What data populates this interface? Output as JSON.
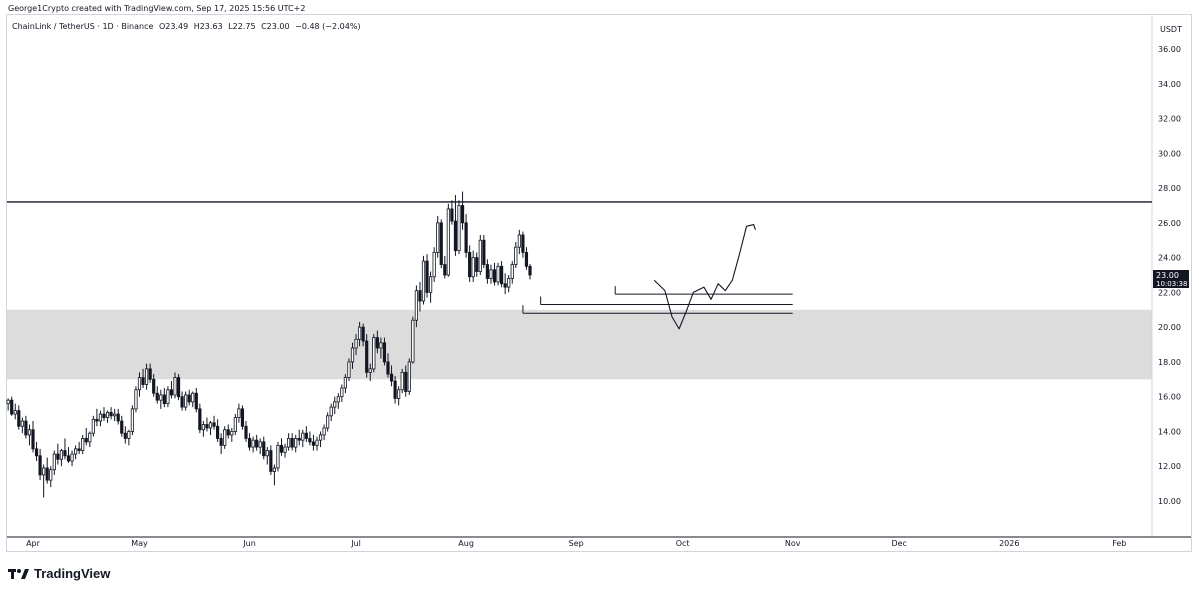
{
  "header": {
    "credit": "George1Crypto created with TradingView.com, Sep 17, 2025 15:56 UTC+2"
  },
  "symbol": {
    "name": "ChainLink / TetherUS · 1D · Binance",
    "open": "O23.49",
    "high": "H23.63",
    "low": "L22.75",
    "close": "C23.00",
    "change": "−0.48 (−2.04%)",
    "change_color": "#f23645"
  },
  "footer": {
    "brand": "TradingView"
  },
  "colors": {
    "up": "#131722",
    "down": "#131722",
    "grid": "#f0f3fa",
    "zone": "#dcdcdc",
    "line": "#131722"
  },
  "chart_data": {
    "type": "candlestick",
    "currency_label": "USDT",
    "y_ticks": [
      "36.00",
      "34.00",
      "32.00",
      "30.00",
      "28.00",
      "26.00",
      "24.00",
      "22.00",
      "20.00",
      "18.00",
      "16.00",
      "14.00",
      "12.00",
      "10.00"
    ],
    "ylim": [
      8.0,
      38.0
    ],
    "x_ticks": [
      {
        "label": "Apr",
        "day": 0
      },
      {
        "label": "May",
        "day": 30
      },
      {
        "label": "Jun",
        "day": 61
      },
      {
        "label": "Jul",
        "day": 91
      },
      {
        "label": "Aug",
        "day": 122
      },
      {
        "label": "Sep",
        "day": 153
      },
      {
        "label": "Oct",
        "day": 183
      },
      {
        "label": "Nov",
        "day": 214
      },
      {
        "label": "Dec",
        "day": 244
      },
      {
        "label": "2026",
        "day": 275
      },
      {
        "label": "Feb",
        "day": 306
      }
    ],
    "last_price": {
      "value": 23.0,
      "label": "23.00",
      "countdown": "10:03:38"
    },
    "resistance_level": 27.2,
    "demand_zone": [
      17.0,
      21.0
    ],
    "support_lines": [
      {
        "price": 21.9,
        "from_day": 164,
        "to_day": 214
      },
      {
        "price": 21.3,
        "from_day": 143,
        "to_day": 214
      },
      {
        "price": 20.8,
        "from_day": 138,
        "to_day": 214
      }
    ],
    "projection": [
      [
        175,
        22.7
      ],
      [
        178,
        22.1
      ],
      [
        180,
        20.6
      ],
      [
        182,
        19.9
      ],
      [
        184,
        20.9
      ],
      [
        186,
        22.0
      ],
      [
        189,
        22.3
      ],
      [
        191,
        21.6
      ],
      [
        193,
        22.5
      ],
      [
        195,
        22.1
      ],
      [
        197,
        22.7
      ],
      [
        199,
        24.2
      ],
      [
        201,
        25.8
      ],
      [
        203,
        25.9
      ],
      [
        203.5,
        25.6
      ]
    ],
    "candles": [
      [
        15.6,
        15.9,
        15.2,
        15.8
      ],
      [
        15.8,
        16.0,
        14.9,
        15.0
      ],
      [
        15.0,
        15.6,
        14.7,
        15.2
      ],
      [
        15.2,
        15.5,
        14.1,
        14.3
      ],
      [
        14.3,
        14.8,
        13.9,
        14.6
      ],
      [
        14.6,
        14.9,
        13.6,
        13.8
      ],
      [
        13.8,
        14.4,
        13.2,
        14.1
      ],
      [
        14.1,
        14.6,
        12.8,
        13.0
      ],
      [
        13.0,
        13.4,
        12.3,
        12.6
      ],
      [
        12.6,
        13.0,
        11.2,
        11.5
      ],
      [
        11.5,
        12.1,
        10.2,
        11.9
      ],
      [
        11.9,
        12.5,
        11.0,
        11.2
      ],
      [
        11.2,
        12.0,
        10.8,
        11.8
      ],
      [
        11.8,
        12.9,
        11.5,
        12.7
      ],
      [
        12.7,
        13.3,
        12.1,
        12.4
      ],
      [
        12.4,
        13.0,
        12.0,
        12.9
      ],
      [
        12.9,
        13.6,
        12.4,
        12.6
      ],
      [
        12.6,
        13.1,
        12.2,
        12.3
      ],
      [
        12.3,
        12.9,
        12.0,
        12.7
      ],
      [
        12.7,
        13.2,
        12.4,
        13.0
      ],
      [
        13.0,
        13.4,
        12.7,
        12.9
      ],
      [
        12.9,
        13.8,
        12.7,
        13.6
      ],
      [
        13.6,
        14.2,
        13.2,
        13.4
      ],
      [
        13.4,
        14.0,
        13.1,
        13.9
      ],
      [
        13.9,
        14.9,
        13.7,
        14.7
      ],
      [
        14.7,
        15.3,
        14.3,
        14.6
      ],
      [
        14.6,
        15.2,
        14.3,
        15.0
      ],
      [
        15.0,
        15.4,
        14.6,
        14.8
      ],
      [
        14.8,
        15.2,
        14.5,
        15.1
      ],
      [
        15.1,
        15.4,
        14.7,
        14.9
      ],
      [
        14.9,
        15.3,
        14.6,
        15.0
      ],
      [
        15.0,
        15.3,
        14.4,
        14.6
      ],
      [
        14.6,
        14.9,
        13.7,
        13.9
      ],
      [
        13.9,
        14.3,
        13.3,
        13.6
      ],
      [
        13.6,
        14.1,
        13.2,
        14.0
      ],
      [
        14.0,
        15.5,
        13.8,
        15.3
      ],
      [
        15.3,
        16.6,
        15.1,
        16.4
      ],
      [
        16.4,
        17.4,
        16.0,
        17.1
      ],
      [
        17.1,
        17.6,
        16.5,
        16.7
      ],
      [
        16.7,
        17.9,
        16.4,
        17.6
      ],
      [
        17.6,
        17.9,
        16.8,
        17.0
      ],
      [
        17.0,
        17.3,
        16.0,
        16.2
      ],
      [
        16.2,
        16.6,
        15.6,
        15.8
      ],
      [
        15.8,
        16.4,
        15.3,
        16.1
      ],
      [
        16.1,
        16.5,
        15.4,
        15.6
      ],
      [
        15.6,
        16.6,
        15.4,
        16.4
      ],
      [
        16.4,
        16.9,
        15.9,
        16.1
      ],
      [
        16.1,
        17.4,
        15.9,
        17.1
      ],
      [
        17.1,
        17.3,
        15.8,
        16.0
      ],
      [
        16.0,
        16.3,
        15.2,
        15.4
      ],
      [
        15.4,
        16.3,
        15.2,
        16.1
      ],
      [
        16.1,
        16.4,
        15.5,
        15.7
      ],
      [
        15.7,
        16.3,
        15.4,
        16.2
      ],
      [
        16.2,
        16.5,
        15.1,
        15.3
      ],
      [
        15.3,
        15.6,
        13.9,
        14.1
      ],
      [
        14.1,
        14.6,
        13.7,
        14.4
      ],
      [
        14.4,
        14.8,
        14.0,
        14.2
      ],
      [
        14.2,
        14.6,
        13.8,
        14.5
      ],
      [
        14.5,
        14.9,
        14.1,
        14.3
      ],
      [
        14.3,
        14.7,
        13.4,
        13.6
      ],
      [
        13.6,
        13.9,
        12.7,
        13.2
      ],
      [
        13.2,
        14.3,
        13.0,
        14.1
      ],
      [
        14.1,
        14.4,
        13.6,
        13.8
      ],
      [
        13.8,
        14.2,
        13.4,
        14.0
      ],
      [
        14.0,
        15.0,
        13.8,
        14.8
      ],
      [
        14.8,
        15.6,
        14.5,
        15.3
      ],
      [
        15.3,
        15.5,
        14.1,
        14.3
      ],
      [
        14.3,
        14.6,
        13.4,
        13.6
      ],
      [
        13.6,
        13.9,
        12.9,
        13.1
      ],
      [
        13.1,
        13.7,
        12.8,
        13.5
      ],
      [
        13.5,
        13.8,
        12.9,
        13.1
      ],
      [
        13.1,
        13.6,
        12.7,
        13.4
      ],
      [
        13.4,
        13.7,
        12.4,
        12.6
      ],
      [
        12.6,
        13.1,
        12.1,
        12.9
      ],
      [
        12.9,
        13.2,
        11.5,
        11.7
      ],
      [
        11.7,
        12.1,
        10.9,
        11.9
      ],
      [
        11.9,
        13.4,
        11.7,
        13.2
      ],
      [
        13.2,
        13.6,
        12.6,
        12.8
      ],
      [
        12.8,
        13.3,
        12.5,
        13.1
      ],
      [
        13.1,
        13.9,
        12.9,
        13.6
      ],
      [
        13.6,
        13.9,
        12.9,
        13.1
      ],
      [
        13.1,
        13.8,
        12.8,
        13.6
      ],
      [
        13.6,
        14.1,
        13.2,
        13.5
      ],
      [
        13.5,
        14.1,
        13.1,
        13.9
      ],
      [
        13.9,
        14.3,
        13.4,
        13.6
      ],
      [
        13.6,
        14.0,
        13.2,
        13.4
      ],
      [
        13.4,
        13.8,
        12.9,
        13.2
      ],
      [
        13.2,
        13.7,
        12.9,
        13.5
      ],
      [
        13.5,
        14.0,
        13.1,
        13.8
      ],
      [
        13.8,
        14.4,
        13.5,
        14.2
      ],
      [
        14.2,
        15.1,
        14.0,
        14.9
      ],
      [
        14.9,
        15.6,
        14.6,
        15.4
      ],
      [
        15.4,
        16.0,
        15.0,
        15.7
      ],
      [
        15.7,
        16.2,
        15.3,
        16.0
      ],
      [
        16.0,
        16.7,
        15.7,
        16.5
      ],
      [
        16.5,
        17.3,
        16.2,
        17.1
      ],
      [
        17.1,
        18.2,
        16.9,
        18.0
      ],
      [
        18.0,
        19.1,
        17.6,
        18.8
      ],
      [
        18.8,
        19.6,
        18.4,
        19.3
      ],
      [
        19.3,
        20.3,
        18.9,
        20.0
      ],
      [
        20.0,
        20.2,
        18.9,
        19.2
      ],
      [
        19.2,
        19.6,
        17.1,
        17.4
      ],
      [
        17.4,
        17.9,
        16.9,
        17.6
      ],
      [
        17.6,
        19.6,
        17.4,
        19.4
      ],
      [
        19.4,
        19.8,
        18.5,
        18.8
      ],
      [
        18.8,
        19.4,
        18.2,
        19.1
      ],
      [
        19.1,
        19.4,
        17.8,
        18.0
      ],
      [
        18.0,
        18.5,
        17.1,
        17.3
      ],
      [
        17.3,
        17.8,
        16.6,
        16.9
      ],
      [
        16.9,
        17.2,
        15.6,
        15.9
      ],
      [
        15.9,
        16.6,
        15.5,
        16.4
      ],
      [
        16.4,
        17.6,
        16.2,
        17.4
      ],
      [
        17.4,
        17.8,
        16.0,
        16.3
      ],
      [
        16.3,
        18.2,
        16.1,
        18.0
      ],
      [
        18.0,
        20.6,
        17.9,
        20.4
      ],
      [
        20.4,
        22.4,
        20.0,
        22.1
      ],
      [
        22.1,
        22.6,
        20.9,
        21.5
      ],
      [
        21.5,
        24.1,
        21.3,
        23.8
      ],
      [
        23.8,
        24.2,
        21.7,
        22.0
      ],
      [
        22.0,
        23.2,
        21.4,
        22.9
      ],
      [
        22.9,
        24.6,
        22.6,
        24.3
      ],
      [
        24.3,
        26.4,
        24.0,
        26.0
      ],
      [
        26.0,
        26.2,
        23.4,
        23.6
      ],
      [
        23.6,
        24.1,
        22.8,
        23.0
      ],
      [
        23.0,
        27.1,
        22.9,
        26.8
      ],
      [
        26.8,
        27.3,
        25.9,
        26.1
      ],
      [
        26.1,
        27.6,
        24.1,
        24.4
      ],
      [
        24.4,
        27.3,
        24.2,
        27.0
      ],
      [
        27.0,
        27.8,
        25.6,
        26.0
      ],
      [
        26.0,
        26.5,
        24.0,
        24.3
      ],
      [
        24.3,
        24.7,
        22.6,
        22.9
      ],
      [
        22.9,
        24.4,
        22.6,
        24.0
      ],
      [
        24.0,
        24.3,
        22.9,
        23.2
      ],
      [
        23.2,
        25.3,
        23.0,
        25.0
      ],
      [
        25.0,
        25.3,
        23.4,
        23.6
      ],
      [
        23.6,
        23.9,
        22.5,
        22.8
      ],
      [
        22.8,
        23.6,
        22.5,
        23.3
      ],
      [
        23.3,
        23.7,
        22.4,
        22.6
      ],
      [
        22.6,
        23.7,
        22.4,
        23.5
      ],
      [
        23.5,
        23.8,
        22.3,
        22.5
      ],
      [
        22.5,
        23.1,
        21.9,
        22.3
      ],
      [
        22.3,
        23.0,
        22.0,
        22.8
      ],
      [
        22.8,
        23.8,
        22.5,
        23.6
      ],
      [
        23.6,
        24.9,
        23.4,
        24.6
      ],
      [
        24.6,
        25.6,
        24.2,
        25.3
      ],
      [
        25.3,
        25.5,
        24.0,
        24.3
      ],
      [
        24.3,
        24.6,
        23.3,
        23.5
      ],
      [
        23.5,
        23.63,
        22.75,
        23.0
      ]
    ]
  }
}
